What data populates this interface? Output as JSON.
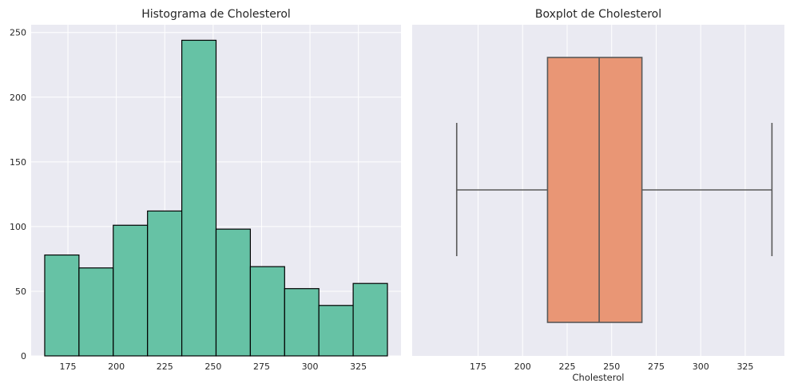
{
  "chart_data": [
    {
      "type": "bar",
      "title": "Histograma de Cholesterol",
      "xlabel": "",
      "ylabel": "",
      "bin_edges": [
        163,
        180.7,
        198.4,
        216.1,
        233.8,
        251.5,
        269.2,
        286.9,
        304.6,
        322.3,
        340
      ],
      "values": [
        78,
        68,
        101,
        112,
        244,
        98,
        69,
        52,
        39,
        56
      ],
      "xlim": [
        156,
        347
      ],
      "ylim": [
        0,
        256
      ],
      "xticks": [
        175,
        200,
        225,
        250,
        275,
        300,
        325
      ],
      "yticks": [
        0,
        50,
        100,
        150,
        200,
        250
      ],
      "grid": true,
      "colors": {
        "bar_fill": "#66c2a5",
        "bar_edge": "#000000",
        "background": "#eaeaf2",
        "grid": "#ffffff"
      }
    },
    {
      "type": "box",
      "title": "Boxplot de Cholesterol",
      "xlabel": "Cholesterol",
      "ylabel": "",
      "stats": {
        "whisker_low": 163,
        "q1": 214,
        "median": 243,
        "q3": 267,
        "whisker_high": 340
      },
      "xlim": [
        138,
        347
      ],
      "xticks": [
        175,
        200,
        225,
        250,
        275,
        300,
        325
      ],
      "grid": true,
      "colors": {
        "box_fill": "#e99675",
        "line": "#595959",
        "background": "#eaeaf2",
        "grid": "#ffffff"
      }
    }
  ]
}
